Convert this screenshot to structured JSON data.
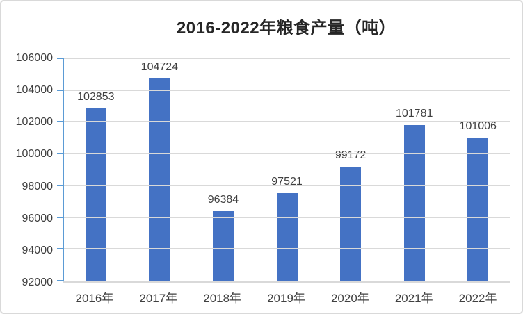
{
  "chart": {
    "title": "2016-2022年粮食产量（吨）"
  },
  "chart_data": {
    "type": "bar",
    "title": "2016-2022年粮食产量（吨）",
    "categories": [
      "2016年",
      "2017年",
      "2018年",
      "2019年",
      "2020年",
      "2021年",
      "2022年"
    ],
    "values": [
      102853,
      104724,
      96384,
      97521,
      99172,
      101781,
      101006
    ],
    "xlabel": "",
    "ylabel": "",
    "ylim": [
      92000,
      106000
    ],
    "ytick_step": 2000,
    "yticks": [
      106000,
      104000,
      102000,
      100000,
      98000,
      96000,
      94000,
      92000
    ],
    "grid": true,
    "legend": false,
    "data_labels": true,
    "colors": {
      "bar": "#4472C4",
      "y_axis_line": "#5B9BD5",
      "x_axis_line": "#D9D9D9",
      "gridline": "#D9D9D9",
      "axis_label_text": "#404040",
      "data_label_text": "#404040",
      "title_text": "#262626",
      "chart_border": "#D9D9D9",
      "background": "#FFFFFF"
    }
  }
}
